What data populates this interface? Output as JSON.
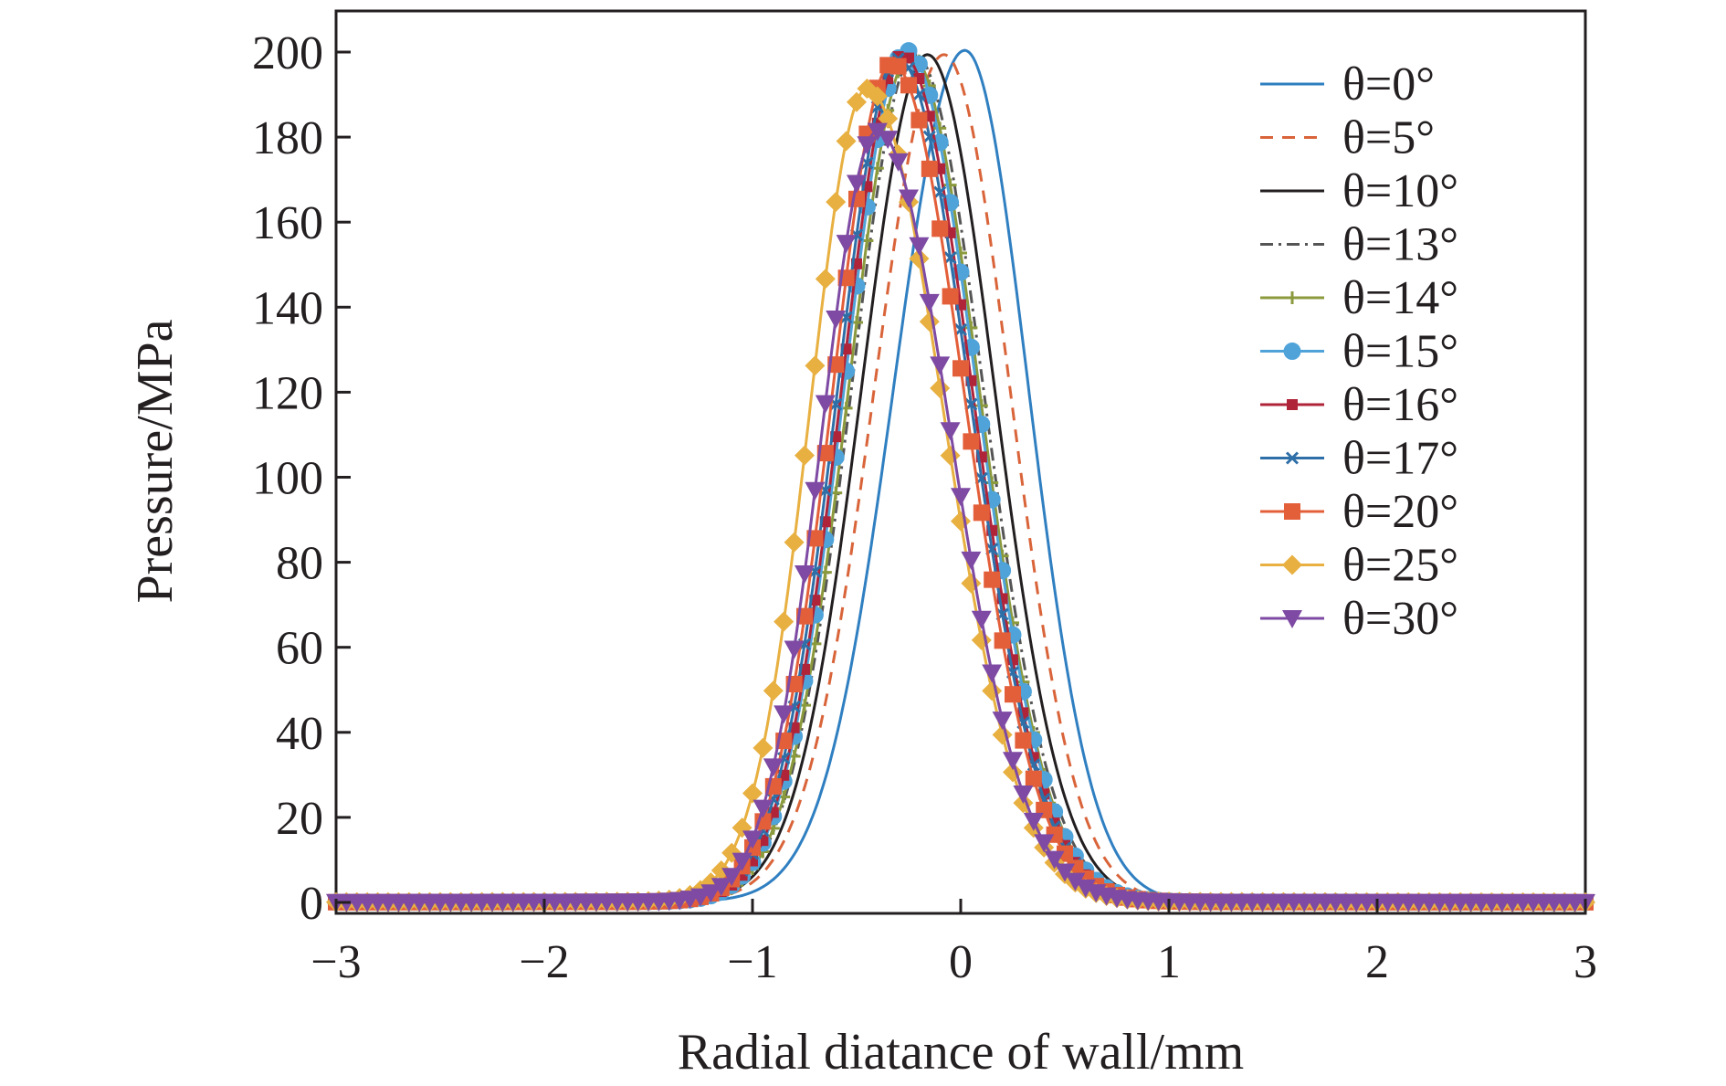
{
  "chart_data": {
    "type": "line",
    "title": "",
    "xlabel": "Radial diatance of wall/mm",
    "ylabel": "Pressure/MPa",
    "xlim": [
      -3,
      3
    ],
    "ylim": [
      0,
      210
    ],
    "xticks": [
      -3,
      -2,
      -1,
      0,
      1,
      2,
      3
    ],
    "yticks": [
      0,
      20,
      40,
      60,
      80,
      100,
      120,
      140,
      160,
      180,
      200
    ],
    "xtick_labels": [
      "−3",
      "−2",
      "−1",
      "0",
      "1",
      "2",
      "3"
    ],
    "ytick_labels": [
      "0",
      "20",
      "40",
      "60",
      "80",
      "100",
      "120",
      "140",
      "160",
      "180",
      "200"
    ],
    "grid": false,
    "legend_position": "top-right",
    "series": [
      {
        "name": "θ=0°",
        "color": "#2f7fc1",
        "dash": "solid",
        "marker": "none",
        "peak": 200,
        "center": 0.02,
        "left_width": 0.56,
        "right_width": 0.5
      },
      {
        "name": "θ=5°",
        "color": "#d9643a",
        "dash": "dashed",
        "marker": "none",
        "peak": 199,
        "center": -0.08,
        "left_width": 0.55,
        "right_width": 0.52
      },
      {
        "name": "θ=10°",
        "color": "#231f20",
        "dash": "solid",
        "marker": "none",
        "peak": 199,
        "center": -0.16,
        "left_width": 0.52,
        "right_width": 0.53
      },
      {
        "name": "θ=13°",
        "color": "#555555",
        "dash": "dashdot",
        "marker": "none",
        "peak": 199,
        "center": -0.22,
        "left_width": 0.5,
        "right_width": 0.54
      },
      {
        "name": "θ=14°",
        "color": "#8c9a3e",
        "dash": "solid",
        "marker": "plus",
        "peak": 199,
        "center": -0.24,
        "left_width": 0.49,
        "right_width": 0.54
      },
      {
        "name": "θ=15°",
        "color": "#4fa3d9",
        "dash": "solid",
        "marker": "circle",
        "peak": 200,
        "center": -0.26,
        "left_width": 0.49,
        "right_width": 0.55
      },
      {
        "name": "θ=16°",
        "color": "#b0243a",
        "dash": "solid",
        "marker": "square-small",
        "peak": 199,
        "center": -0.28,
        "left_width": 0.48,
        "right_width": 0.55
      },
      {
        "name": "θ=17°",
        "color": "#2e6fa8",
        "dash": "solid",
        "marker": "x",
        "peak": 198,
        "center": -0.3,
        "left_width": 0.48,
        "right_width": 0.56
      },
      {
        "name": "θ=20°",
        "color": "#e35f3a",
        "dash": "solid",
        "marker": "square",
        "peak": 197,
        "center": -0.33,
        "left_width": 0.47,
        "right_width": 0.57
      },
      {
        "name": "θ=25°",
        "color": "#e8b040",
        "dash": "solid",
        "marker": "diamond",
        "peak": 191,
        "center": -0.45,
        "left_width": 0.45,
        "right_width": 0.6
      },
      {
        "name": "θ=30°",
        "color": "#7e4aa3",
        "dash": "solid",
        "marker": "triangle-down",
        "peak": 181,
        "center": -0.4,
        "left_width": 0.44,
        "right_width": 0.58
      }
    ]
  }
}
